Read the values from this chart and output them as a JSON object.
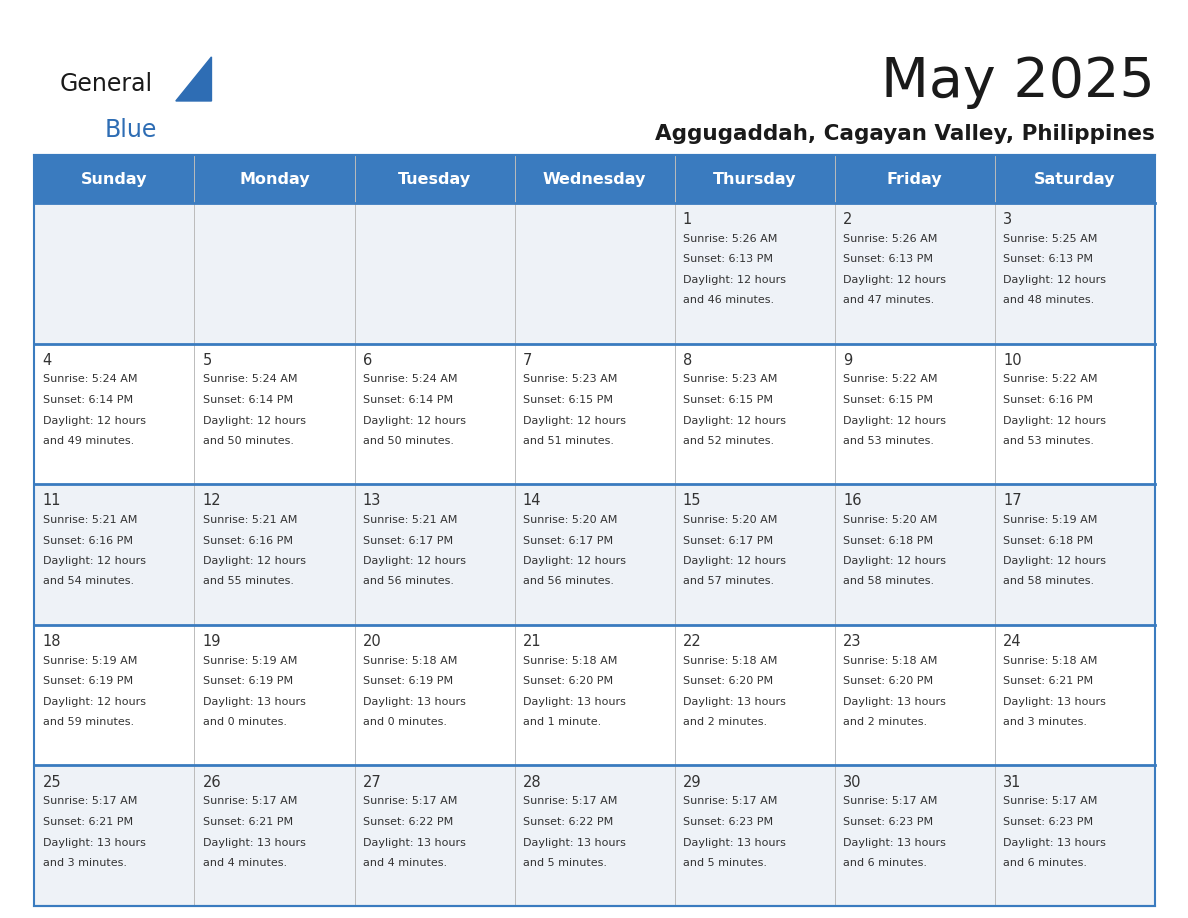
{
  "title": "May 2025",
  "subtitle": "Aggugaddah, Cagayan Valley, Philippines",
  "header_bg": "#3a7bbf",
  "header_text": "#ffffff",
  "day_names": [
    "Sunday",
    "Monday",
    "Tuesday",
    "Wednesday",
    "Thursday",
    "Friday",
    "Saturday"
  ],
  "row_bg_odd": "#eef2f7",
  "row_bg_even": "#ffffff",
  "cell_border_color": "#3a7bbf",
  "cell_line_color": "#bbbbbb",
  "text_color": "#333333",
  "logo_general_color": "#1a1a1a",
  "logo_blue_color": "#2e6db4",
  "logo_triangle_color": "#2e6db4",
  "title_color": "#1a1a1a",
  "subtitle_color": "#1a1a1a",
  "days": [
    {
      "date": 1,
      "col": 4,
      "row": 0,
      "sunrise": "5:26 AM",
      "sunset": "6:13 PM",
      "daylight": "12 hours and 46 minutes"
    },
    {
      "date": 2,
      "col": 5,
      "row": 0,
      "sunrise": "5:26 AM",
      "sunset": "6:13 PM",
      "daylight": "12 hours and 47 minutes"
    },
    {
      "date": 3,
      "col": 6,
      "row": 0,
      "sunrise": "5:25 AM",
      "sunset": "6:13 PM",
      "daylight": "12 hours and 48 minutes"
    },
    {
      "date": 4,
      "col": 0,
      "row": 1,
      "sunrise": "5:24 AM",
      "sunset": "6:14 PM",
      "daylight": "12 hours and 49 minutes"
    },
    {
      "date": 5,
      "col": 1,
      "row": 1,
      "sunrise": "5:24 AM",
      "sunset": "6:14 PM",
      "daylight": "12 hours and 50 minutes"
    },
    {
      "date": 6,
      "col": 2,
      "row": 1,
      "sunrise": "5:24 AM",
      "sunset": "6:14 PM",
      "daylight": "12 hours and 50 minutes"
    },
    {
      "date": 7,
      "col": 3,
      "row": 1,
      "sunrise": "5:23 AM",
      "sunset": "6:15 PM",
      "daylight": "12 hours and 51 minutes"
    },
    {
      "date": 8,
      "col": 4,
      "row": 1,
      "sunrise": "5:23 AM",
      "sunset": "6:15 PM",
      "daylight": "12 hours and 52 minutes"
    },
    {
      "date": 9,
      "col": 5,
      "row": 1,
      "sunrise": "5:22 AM",
      "sunset": "6:15 PM",
      "daylight": "12 hours and 53 minutes"
    },
    {
      "date": 10,
      "col": 6,
      "row": 1,
      "sunrise": "5:22 AM",
      "sunset": "6:16 PM",
      "daylight": "12 hours and 53 minutes"
    },
    {
      "date": 11,
      "col": 0,
      "row": 2,
      "sunrise": "5:21 AM",
      "sunset": "6:16 PM",
      "daylight": "12 hours and 54 minutes"
    },
    {
      "date": 12,
      "col": 1,
      "row": 2,
      "sunrise": "5:21 AM",
      "sunset": "6:16 PM",
      "daylight": "12 hours and 55 minutes"
    },
    {
      "date": 13,
      "col": 2,
      "row": 2,
      "sunrise": "5:21 AM",
      "sunset": "6:17 PM",
      "daylight": "12 hours and 56 minutes"
    },
    {
      "date": 14,
      "col": 3,
      "row": 2,
      "sunrise": "5:20 AM",
      "sunset": "6:17 PM",
      "daylight": "12 hours and 56 minutes"
    },
    {
      "date": 15,
      "col": 4,
      "row": 2,
      "sunrise": "5:20 AM",
      "sunset": "6:17 PM",
      "daylight": "12 hours and 57 minutes"
    },
    {
      "date": 16,
      "col": 5,
      "row": 2,
      "sunrise": "5:20 AM",
      "sunset": "6:18 PM",
      "daylight": "12 hours and 58 minutes"
    },
    {
      "date": 17,
      "col": 6,
      "row": 2,
      "sunrise": "5:19 AM",
      "sunset": "6:18 PM",
      "daylight": "12 hours and 58 minutes"
    },
    {
      "date": 18,
      "col": 0,
      "row": 3,
      "sunrise": "5:19 AM",
      "sunset": "6:19 PM",
      "daylight": "12 hours and 59 minutes"
    },
    {
      "date": 19,
      "col": 1,
      "row": 3,
      "sunrise": "5:19 AM",
      "sunset": "6:19 PM",
      "daylight": "13 hours and 0 minutes"
    },
    {
      "date": 20,
      "col": 2,
      "row": 3,
      "sunrise": "5:18 AM",
      "sunset": "6:19 PM",
      "daylight": "13 hours and 0 minutes"
    },
    {
      "date": 21,
      "col": 3,
      "row": 3,
      "sunrise": "5:18 AM",
      "sunset": "6:20 PM",
      "daylight": "13 hours and 1 minute"
    },
    {
      "date": 22,
      "col": 4,
      "row": 3,
      "sunrise": "5:18 AM",
      "sunset": "6:20 PM",
      "daylight": "13 hours and 2 minutes"
    },
    {
      "date": 23,
      "col": 5,
      "row": 3,
      "sunrise": "5:18 AM",
      "sunset": "6:20 PM",
      "daylight": "13 hours and 2 minutes"
    },
    {
      "date": 24,
      "col": 6,
      "row": 3,
      "sunrise": "5:18 AM",
      "sunset": "6:21 PM",
      "daylight": "13 hours and 3 minutes"
    },
    {
      "date": 25,
      "col": 0,
      "row": 4,
      "sunrise": "5:17 AM",
      "sunset": "6:21 PM",
      "daylight": "13 hours and 3 minutes"
    },
    {
      "date": 26,
      "col": 1,
      "row": 4,
      "sunrise": "5:17 AM",
      "sunset": "6:21 PM",
      "daylight": "13 hours and 4 minutes"
    },
    {
      "date": 27,
      "col": 2,
      "row": 4,
      "sunrise": "5:17 AM",
      "sunset": "6:22 PM",
      "daylight": "13 hours and 4 minutes"
    },
    {
      "date": 28,
      "col": 3,
      "row": 4,
      "sunrise": "5:17 AM",
      "sunset": "6:22 PM",
      "daylight": "13 hours and 5 minutes"
    },
    {
      "date": 29,
      "col": 4,
      "row": 4,
      "sunrise": "5:17 AM",
      "sunset": "6:23 PM",
      "daylight": "13 hours and 5 minutes"
    },
    {
      "date": 30,
      "col": 5,
      "row": 4,
      "sunrise": "5:17 AM",
      "sunset": "6:23 PM",
      "daylight": "13 hours and 6 minutes"
    },
    {
      "date": 31,
      "col": 6,
      "row": 4,
      "sunrise": "5:17 AM",
      "sunset": "6:23 PM",
      "daylight": "13 hours and 6 minutes"
    }
  ]
}
